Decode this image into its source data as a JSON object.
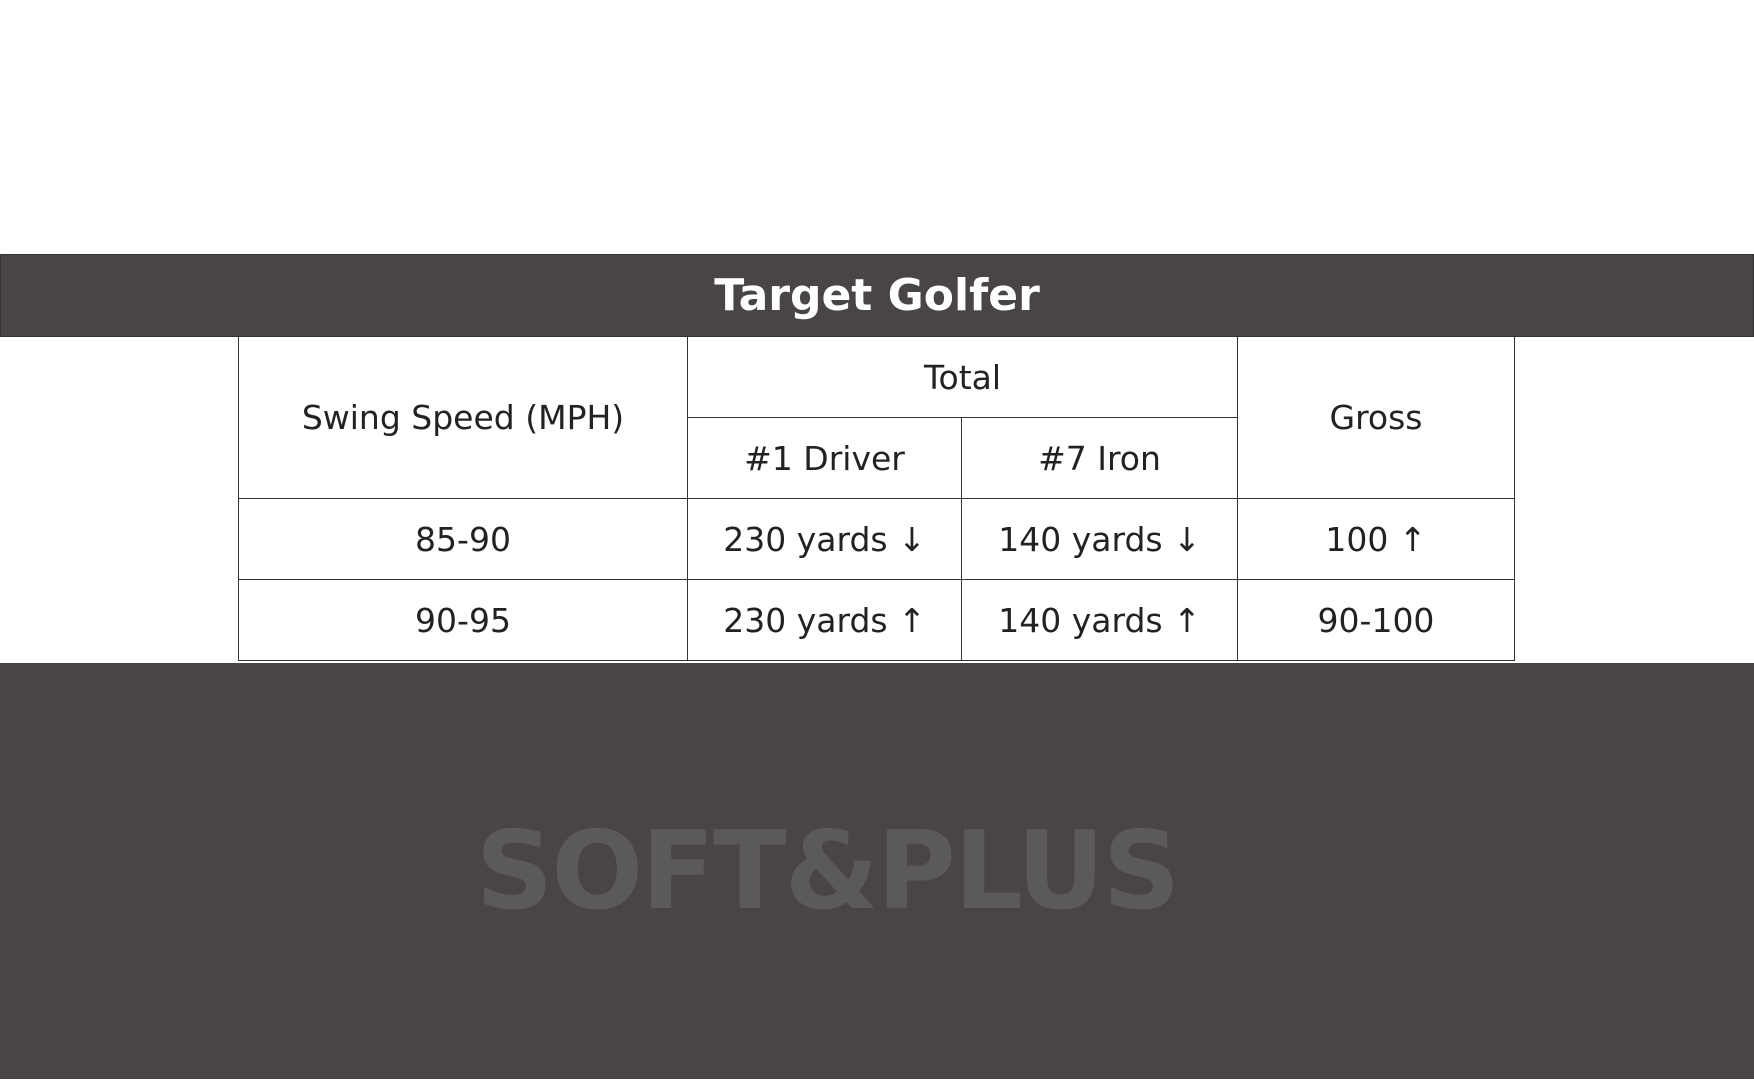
{
  "header": {
    "title": "Target Golfer"
  },
  "table": {
    "header_row_1": [
      "Swing Speed (MPH)",
      "Total",
      "Gross"
    ],
    "header_row_2": [
      "#1 Driver",
      "#7 Iron"
    ],
    "rows": [
      [
        "85-90",
        "230 yards ↓",
        "140 yards ↓",
        "100 ↑"
      ],
      [
        "90-95",
        "230 yards ↑",
        "140 yards ↑",
        "90-100"
      ]
    ]
  },
  "footer": {
    "watermark": "SOFT&PLUS"
  }
}
